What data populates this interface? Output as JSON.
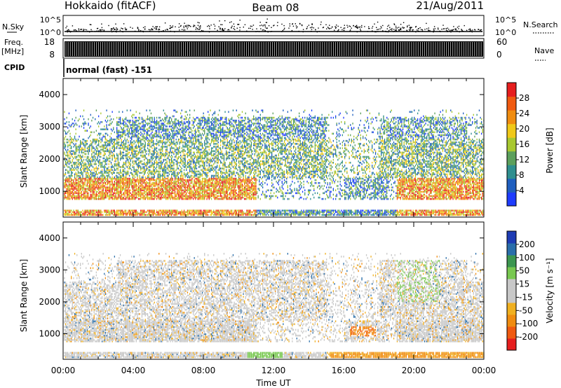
{
  "header": {
    "station": "Hokkaido (fitACF)",
    "beam": "Beam 08",
    "date": "21/Aug/2011"
  },
  "summary": {
    "nsky_label": "N.Sky",
    "nsky_ticks": [
      "10^5",
      "10^0"
    ],
    "freq_label": "Freq.",
    "freq_unit": "[MHz]",
    "freq_ticks": [
      "18",
      "8"
    ],
    "nave_ticks": [
      "60",
      "0"
    ],
    "nsearch_label": "N.Search",
    "nave_label": "Nave",
    "cpid_label": "CPID",
    "cpid_text": "normal (fast) -151"
  },
  "colors": {
    "power": [
      "#1e3cff",
      "#1f5fbf",
      "#2f8f8f",
      "#5ca05c",
      "#a8c830",
      "#f0c818",
      "#f08c10",
      "#f05a10",
      "#e61e1e"
    ],
    "velocity": [
      "#e61e1e",
      "#f05a10",
      "#f08c10",
      "#f0b020",
      "#c8c8c8",
      "#c8c8c8",
      "#78c850",
      "#3c9650",
      "#2a6eaa",
      "#1e3cb4"
    ]
  },
  "chart_data": [
    {
      "type": "heatmap",
      "panel": "power",
      "ylabel": "Slant Range [km]",
      "ylim": [
        200,
        4500
      ],
      "yticks": [
        "4000",
        "3000",
        "2000",
        "1000"
      ],
      "xlim": [
        "00:00",
        "24:00"
      ],
      "colorbar_label": "Power [dB]",
      "colorbar_ticks": [
        "28",
        "24",
        "20",
        "16",
        "12",
        "8",
        "4"
      ],
      "colorbar_range": [
        0,
        32
      ]
    },
    {
      "type": "heatmap",
      "panel": "velocity",
      "ylabel": "Slant Range [km]",
      "ylim": [
        200,
        4500
      ],
      "yticks": [
        "4000",
        "3000",
        "2000",
        "1000"
      ],
      "xlim": [
        "00:00",
        "24:00"
      ],
      "colorbar_label": "Velocity [m s⁻¹]",
      "colorbar_ticks": [
        "200",
        "100",
        "50",
        "15",
        "-15",
        "-50",
        "-100",
        "-200"
      ]
    }
  ],
  "xaxis": {
    "ticks": [
      "00:00",
      "04:00",
      "08:00",
      "12:00",
      "16:00",
      "20:00",
      "00:00"
    ],
    "label": "Time UT"
  }
}
